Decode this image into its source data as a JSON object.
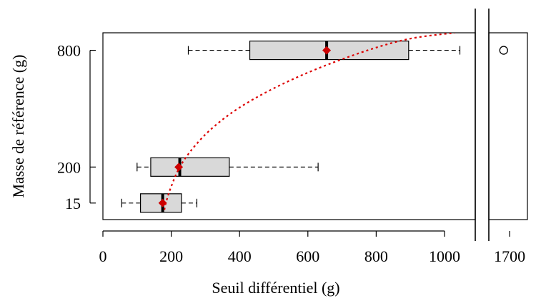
{
  "chart_data": {
    "type": "boxplot",
    "title": "",
    "xlabel": "Seuil différentiel (g)",
    "ylabel": "Masse de référence (g)",
    "orientation": "horizontal",
    "x_axis": {
      "main_ticks": [
        "0",
        "200",
        "400",
        "600",
        "800",
        "1000"
      ],
      "main_range": [
        0,
        1090
      ],
      "axis_break": true,
      "break_ticks": [
        "1700"
      ],
      "break_range": [
        1630,
        1760
      ]
    },
    "y_axis": {
      "ticks": [
        "15",
        "200",
        "800"
      ],
      "range": [
        -70,
        890
      ]
    },
    "boxes": [
      {
        "group": "15",
        "y": 15,
        "whisker_low": 55,
        "q1": 110,
        "median": 175,
        "q3": 230,
        "whisker_high": 275,
        "mean": 175,
        "outliers": []
      },
      {
        "group": "200",
        "y": 200,
        "whisker_low": 100,
        "q1": 140,
        "median": 225,
        "q3": 370,
        "whisker_high": 630,
        "mean": 222,
        "outliers": []
      },
      {
        "group": "800",
        "y": 800,
        "whisker_low": 250,
        "q1": 430,
        "median": 655,
        "q3": 895,
        "whisker_high": 1045,
        "mean": 655,
        "outliers": [
          1680
        ]
      }
    ],
    "fit_curve": {
      "style": "dotted",
      "color": "#dd0000",
      "points": [
        [
          180,
          -20
        ],
        [
          185,
          20
        ],
        [
          200,
          100
        ],
        [
          225,
          200
        ],
        [
          265,
          300
        ],
        [
          320,
          400
        ],
        [
          395,
          500
        ],
        [
          495,
          600
        ],
        [
          620,
          700
        ],
        [
          775,
          800
        ],
        [
          900,
          860
        ],
        [
          1030,
          890
        ]
      ]
    },
    "colors": {
      "box_fill": "#d9d9d9",
      "mean_marker": "#cc0000",
      "median": "#000000"
    }
  }
}
